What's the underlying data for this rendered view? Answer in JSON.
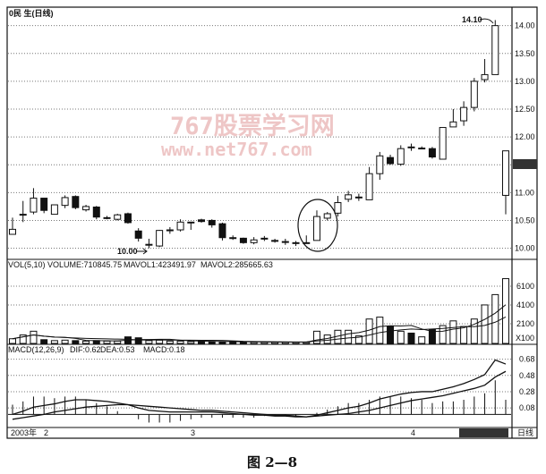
{
  "header": {
    "title": "0民 生(日线)"
  },
  "annotations": {
    "high": "14.10",
    "low": "10.00"
  },
  "watermark": {
    "line1": "767股票学习网",
    "line2": "www.net767.com"
  },
  "volume_header": {
    "vol": "VOL(5,10) VOLUME:710845.75",
    "mavol1": "MAVOL1:423491.97",
    "mavol2": "MAVOL2:285665.63",
    "unit": "X100"
  },
  "macd_header": {
    "macd_params": "MACD(12,26,9)",
    "dif": "DIF:0.62",
    "dea": "DEA:0.53",
    "macd": "MACD:0.18"
  },
  "time_axis": {
    "labels": [
      "2003年",
      "2",
      "3",
      "4"
    ],
    "period": "日线"
  },
  "caption": "图 2—8",
  "colors": {
    "candle_up": "#ffffff",
    "candle_down": "#111111",
    "grid": "#777777",
    "watermark": "#e9b3b3"
  },
  "chart_data": [
    {
      "type": "candlestick",
      "title": "0民 生(日线)",
      "yticks": [
        "10.00",
        "10.50",
        "11.00",
        "11.50",
        "12.00",
        "12.50",
        "13.00",
        "13.50",
        "14.00"
      ],
      "ylim": [
        9.8,
        14.3
      ],
      "grid": true,
      "ohlc": [
        [
          10.25,
          10.34,
          10.55,
          10.25
        ],
        [
          10.6,
          10.61,
          10.85,
          10.47
        ],
        [
          10.65,
          10.9,
          11.08,
          10.61
        ],
        [
          10.9,
          10.68,
          10.9,
          10.63
        ],
        [
          10.61,
          10.78,
          10.78,
          10.61
        ],
        [
          10.77,
          10.91,
          10.95,
          10.72
        ],
        [
          10.93,
          10.73,
          10.95,
          10.7
        ],
        [
          10.69,
          10.75,
          10.78,
          10.66
        ],
        [
          10.74,
          10.56,
          10.76,
          10.52
        ],
        [
          10.55,
          10.55,
          10.58,
          10.52
        ],
        [
          10.52,
          10.6,
          10.62,
          10.5
        ],
        [
          10.62,
          10.46,
          10.64,
          10.44
        ],
        [
          10.31,
          10.18,
          10.36,
          10.12
        ],
        [
          10.06,
          10.07,
          10.17,
          10.0
        ],
        [
          10.04,
          10.32,
          10.33,
          10.02
        ],
        [
          10.32,
          10.33,
          10.38,
          10.26
        ],
        [
          10.33,
          10.47,
          10.52,
          10.3
        ],
        [
          10.47,
          10.47,
          10.47,
          10.33
        ],
        [
          10.51,
          10.48,
          10.53,
          10.46
        ],
        [
          10.5,
          10.42,
          10.52,
          10.37
        ],
        [
          10.44,
          10.19,
          10.46,
          10.14
        ],
        [
          10.19,
          10.18,
          10.23,
          10.15
        ],
        [
          10.18,
          10.1,
          10.19,
          10.08
        ],
        [
          10.1,
          10.15,
          10.2,
          10.07
        ],
        [
          10.17,
          10.18,
          10.22,
          10.13
        ],
        [
          10.14,
          10.14,
          10.17,
          10.1
        ],
        [
          10.12,
          10.12,
          10.17,
          10.06
        ],
        [
          10.1,
          10.1,
          10.13,
          10.04
        ],
        [
          10.1,
          10.1,
          10.23,
          10.08
        ],
        [
          10.14,
          10.57,
          10.68,
          10.14
        ],
        [
          10.54,
          10.62,
          10.65,
          10.5
        ],
        [
          10.63,
          10.82,
          10.94,
          10.57
        ],
        [
          10.88,
          10.96,
          11.03,
          10.83
        ],
        [
          10.92,
          10.92,
          10.98,
          10.85
        ],
        [
          10.87,
          11.34,
          11.46,
          10.87
        ],
        [
          11.34,
          11.66,
          11.73,
          11.23
        ],
        [
          11.63,
          11.52,
          11.68,
          11.5
        ],
        [
          11.51,
          11.79,
          11.85,
          11.48
        ],
        [
          11.82,
          11.81,
          11.88,
          11.75
        ],
        [
          11.8,
          11.8,
          11.83,
          11.78
        ],
        [
          11.79,
          11.64,
          11.82,
          11.61
        ],
        [
          11.6,
          12.17,
          12.17,
          11.6
        ],
        [
          12.18,
          12.27,
          12.5,
          12.18
        ],
        [
          12.29,
          12.53,
          12.64,
          12.2
        ],
        [
          12.53,
          13.0,
          13.06,
          12.46
        ],
        [
          13.03,
          13.12,
          13.4,
          12.98
        ],
        [
          13.12,
          14.0,
          14.1,
          13.12
        ],
        [
          10.95,
          11.75,
          11.75,
          10.61
        ]
      ]
    },
    {
      "type": "bar",
      "title": "VOL(5,10)",
      "yticks": [
        "2100",
        "4100",
        "6100"
      ],
      "ylim": [
        0,
        8000
      ],
      "unit": "X100",
      "values": [
        500,
        900,
        1300,
        400,
        300,
        350,
        300,
        250,
        300,
        250,
        250,
        700,
        600,
        300,
        350,
        250,
        250,
        200,
        200,
        200,
        180,
        150,
        150,
        150,
        150,
        140,
        140,
        130,
        130,
        1300,
        900,
        1400,
        1400,
        800,
        2600,
        2800,
        1800,
        1300,
        1100,
        700,
        1500,
        1900,
        2400,
        1800,
        2600,
        4100,
        5200,
        6900
      ]
    },
    {
      "type": "line",
      "title": "MACD(12,26,9)",
      "yticks": [
        "0.08",
        "0.28",
        "0.48",
        "0.68"
      ],
      "ylim": [
        -0.15,
        0.83
      ],
      "series": [
        {
          "name": "DIF",
          "values": [
            0.0,
            0.04,
            0.09,
            0.11,
            0.13,
            0.16,
            0.18,
            0.18,
            0.17,
            0.16,
            0.14,
            0.12,
            0.08,
            0.05,
            0.04,
            0.03,
            0.03,
            0.03,
            0.03,
            0.03,
            0.02,
            0.01,
            0.0,
            -0.01,
            -0.01,
            -0.02,
            -0.02,
            -0.03,
            -0.03,
            -0.01,
            0.02,
            0.05,
            0.08,
            0.1,
            0.14,
            0.19,
            0.22,
            0.25,
            0.27,
            0.28,
            0.28,
            0.31,
            0.34,
            0.38,
            0.43,
            0.49,
            0.67,
            0.62
          ]
        },
        {
          "name": "DEA",
          "values": [
            -0.06,
            -0.04,
            -0.02,
            0.0,
            0.03,
            0.05,
            0.07,
            0.09,
            0.1,
            0.11,
            0.12,
            0.12,
            0.11,
            0.1,
            0.09,
            0.08,
            0.07,
            0.06,
            0.05,
            0.05,
            0.04,
            0.03,
            0.02,
            0.01,
            0.0,
            -0.01,
            -0.01,
            -0.02,
            -0.03,
            -0.02,
            -0.01,
            0.0,
            0.01,
            0.03,
            0.05,
            0.08,
            0.11,
            0.14,
            0.17,
            0.19,
            0.21,
            0.23,
            0.26,
            0.29,
            0.32,
            0.36,
            0.46,
            0.53
          ]
        }
      ]
    }
  ]
}
